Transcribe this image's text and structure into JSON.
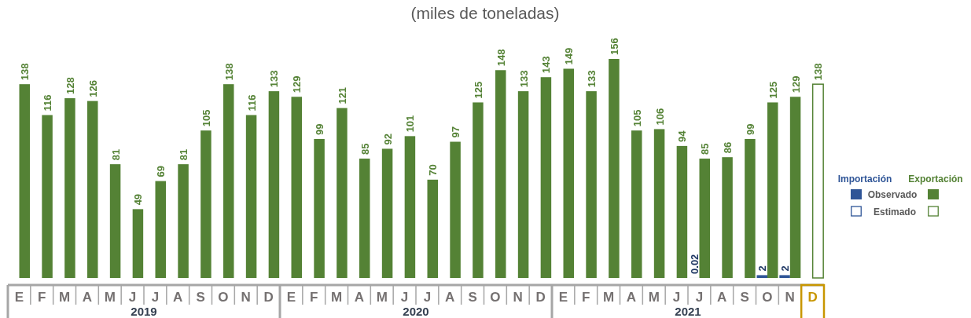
{
  "chart_data": {
    "type": "bar",
    "title": "(miles de toneladas)",
    "categories": [
      "E",
      "F",
      "M",
      "A",
      "M",
      "J",
      "J",
      "A",
      "S",
      "O",
      "N",
      "D",
      "E",
      "F",
      "M",
      "A",
      "M",
      "J",
      "J",
      "A",
      "S",
      "O",
      "N",
      "D",
      "E",
      "F",
      "M",
      "A",
      "M",
      "J",
      "J",
      "A",
      "S",
      "O",
      "N",
      "D"
    ],
    "series": [
      {
        "name": "Importación",
        "color": "#2f5597",
        "values": [
          null,
          null,
          null,
          null,
          null,
          null,
          null,
          null,
          null,
          null,
          null,
          null,
          null,
          null,
          null,
          null,
          null,
          null,
          null,
          null,
          null,
          null,
          null,
          null,
          null,
          null,
          null,
          null,
          null,
          null,
          0.02,
          null,
          null,
          2,
          2,
          null
        ]
      },
      {
        "name": "Exportación",
        "color": "#548235",
        "values": [
          138,
          116,
          128,
          126,
          81,
          49,
          69,
          81,
          105,
          138,
          116,
          133,
          129,
          99,
          121,
          85,
          92,
          101,
          70,
          97,
          125,
          148,
          133,
          143,
          149,
          133,
          156,
          105,
          106,
          94,
          85,
          86,
          99,
          125,
          129,
          null
        ]
      },
      {
        "color": "#548235",
        "values": [
          null,
          null,
          null,
          null,
          null,
          null,
          null,
          null,
          null,
          null,
          null,
          null,
          null,
          null,
          null,
          null,
          null,
          null,
          null,
          null,
          null,
          null,
          null,
          null,
          null,
          null,
          null,
          null,
          null,
          null,
          null,
          null,
          null,
          null,
          null,
          138
        ]
      }
    ],
    "annotations": [
      "Observado",
      "Estimado",
      "2019",
      "2020",
      "2021"
    ],
    "data_labels": true,
    "legend": "right"
  }
}
